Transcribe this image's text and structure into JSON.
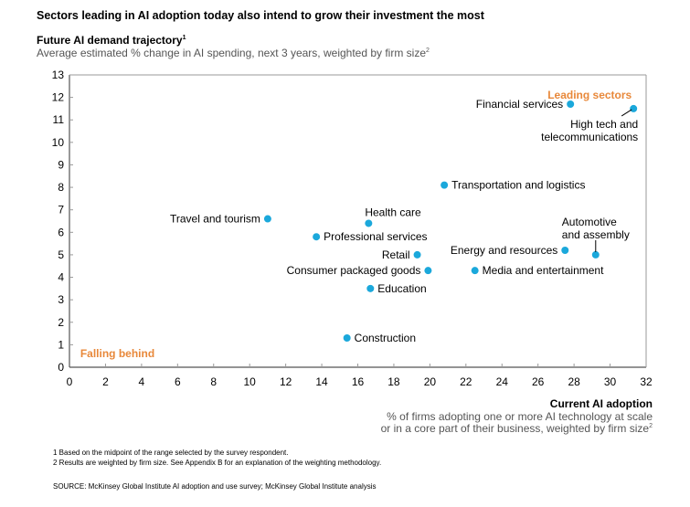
{
  "title": "Sectors leading in AI adoption today also intend to grow their investment the most",
  "y_axis": {
    "title": "Future AI demand trajectory",
    "title_sup": "1",
    "subtitle": "Average estimated % change in AI spending, next 3 years, weighted by firm size",
    "subtitle_sup": "2"
  },
  "x_axis": {
    "title": "Current AI adoption",
    "subtitle_line1": "% of firms adopting one or more AI technology at scale",
    "subtitle_line2": "or in a core part of their business, weighted by firm size",
    "subtitle_sup": "2"
  },
  "footnotes": [
    "1  Based on the midpoint of the range selected by the survey respondent.",
    "2  Results are weighted by firm size. See Appendix B for an explanation of the weighting methodology."
  ],
  "source": "SOURCE:  McKinsey Global Institute AI adoption and use survey; McKinsey Global Institute analysis",
  "colors": {
    "point": "#1ba8db",
    "zone_label": "#e8883a",
    "axis": "#999999"
  },
  "chart_data": {
    "type": "scatter",
    "title": "Sectors leading in AI adoption today also intend to grow their investment the most",
    "xlabel": "Current AI adoption",
    "ylabel": "Future AI demand trajectory",
    "xlim": [
      0,
      32
    ],
    "ylim": [
      0,
      13
    ],
    "x_ticks": [
      0,
      2,
      4,
      6,
      8,
      10,
      12,
      14,
      16,
      18,
      20,
      22,
      24,
      26,
      28,
      30,
      32
    ],
    "y_ticks": [
      0,
      1,
      2,
      3,
      4,
      5,
      6,
      7,
      8,
      9,
      10,
      11,
      12,
      13
    ],
    "grid": false,
    "annotations": [
      {
        "text": "Leading sectors",
        "x": 31.2,
        "y": 12.1,
        "anchor": "end"
      },
      {
        "text": "Falling behind",
        "x": 0.6,
        "y": 0.6,
        "anchor": "start"
      }
    ],
    "points": [
      {
        "name": "Financial services",
        "x": 27.8,
        "y": 11.7,
        "label_pos": "left"
      },
      {
        "name": "High tech and telecommunications",
        "x": 31.3,
        "y": 11.5,
        "label_pos": "below-left-multi",
        "lines": [
          "High tech and",
          "telecommunications"
        ]
      },
      {
        "name": "Transportation and logistics",
        "x": 20.8,
        "y": 8.1,
        "label_pos": "right"
      },
      {
        "name": "Travel and tourism",
        "x": 11.0,
        "y": 6.6,
        "label_pos": "left"
      },
      {
        "name": "Health care",
        "x": 16.6,
        "y": 6.4,
        "label_pos": "above"
      },
      {
        "name": "Professional services",
        "x": 13.7,
        "y": 5.8,
        "label_pos": "right"
      },
      {
        "name": "Retail",
        "x": 19.3,
        "y": 5.0,
        "label_pos": "left"
      },
      {
        "name": "Energy and resources",
        "x": 27.5,
        "y": 5.2,
        "label_pos": "left"
      },
      {
        "name": "Automotive and assembly",
        "x": 29.2,
        "y": 5.0,
        "label_pos": "above-multi",
        "lines": [
          "Automotive",
          "and assembly"
        ]
      },
      {
        "name": "Consumer packaged goods",
        "x": 19.9,
        "y": 4.3,
        "label_pos": "left"
      },
      {
        "name": "Media and entertainment",
        "x": 22.5,
        "y": 4.3,
        "label_pos": "right"
      },
      {
        "name": "Education",
        "x": 16.7,
        "y": 3.5,
        "label_pos": "right"
      },
      {
        "name": "Construction",
        "x": 15.4,
        "y": 1.3,
        "label_pos": "right"
      }
    ]
  }
}
